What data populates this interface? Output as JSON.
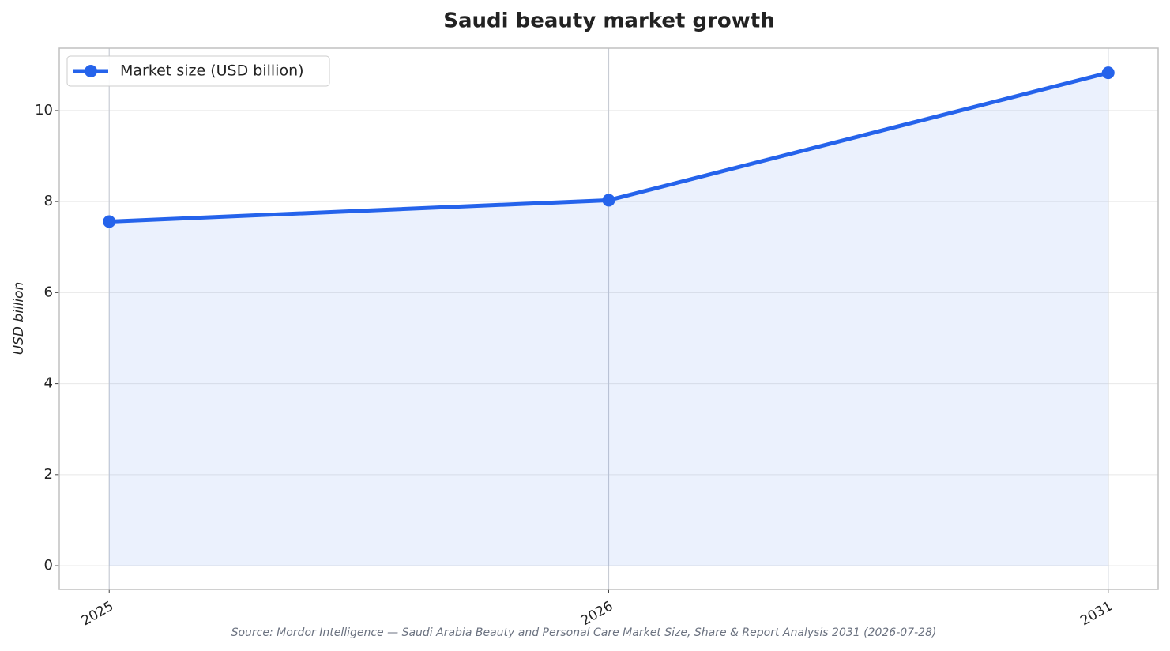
{
  "chart_data": {
    "type": "line",
    "title": "Saudi beauty market growth",
    "y_label": "USD billion",
    "source": "Source: Mordor Intelligence — Saudi Arabia Beauty and Personal Care Market Size, Share & Report Analysis 2031 (2026-07-28)",
    "categories": [
      "2025",
      "2026",
      "2031"
    ],
    "series": [
      {
        "name": "Market size (USD billion)",
        "color": "#2563eb",
        "values": [
          7.56,
          8.03,
          10.83
        ]
      }
    ],
    "ylim": [
      -0.52,
      11.37
    ],
    "yticks": [
      0,
      2,
      4,
      6,
      8,
      10
    ],
    "grid": true,
    "fill": true,
    "legend": "upper left"
  }
}
